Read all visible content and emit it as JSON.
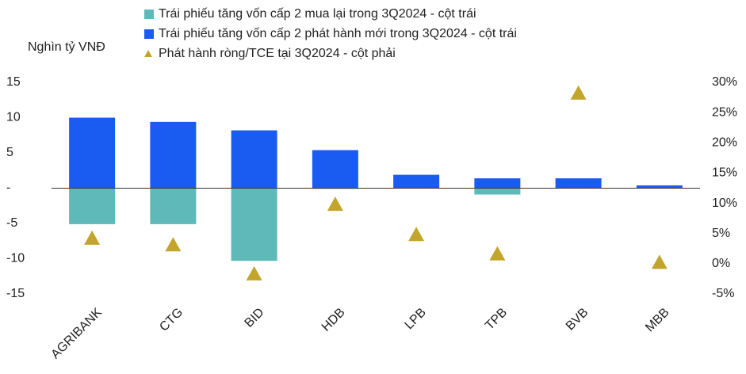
{
  "chart_data": {
    "type": "bar",
    "y_label": "Nghìn tỷ VNĐ",
    "categories": [
      "AGRIBANK",
      "CTG",
      "BID",
      "HDB",
      "LPB",
      "TPB",
      "BVB",
      "MBB"
    ],
    "series": [
      {
        "name": "Trái phiếu tăng vốn cấp 2 mua lại trong 3Q2024 - cột trái",
        "color": "#5fb9b9",
        "values": [
          -5.1,
          -5.1,
          -10.3,
          -0.1,
          0,
          -0.9,
          0,
          0
        ]
      },
      {
        "name": "Trái phiếu tăng vốn cấp 2 phát hành mới trong 3Q2024 - cột trái",
        "color": "#1a5cf2",
        "values": [
          10,
          9.4,
          8.2,
          5.4,
          1.9,
          1.4,
          1.4,
          0.4
        ]
      },
      {
        "name": "Phát hành ròng/TCE tại 3Q2024 - cột phải",
        "color": "#c4a52c",
        "axis": "y2",
        "values": [
          4.2,
          3.1,
          -1.7,
          9.8,
          4.8,
          1.6,
          28.2,
          0.2
        ]
      }
    ],
    "ylim": [
      -15,
      15
    ],
    "yticks": [
      15,
      10,
      5,
      {
        "value": 0,
        "label": "-"
      },
      -5,
      -10,
      -15
    ],
    "y2lim": [
      -5,
      30
    ],
    "y2ticks": [
      {
        "value": 30,
        "label": "30%"
      },
      {
        "value": 25,
        "label": "25%"
      },
      {
        "value": 20,
        "label": "20%"
      },
      {
        "value": 15,
        "label": "15%"
      },
      {
        "value": 10,
        "label": "10%"
      },
      {
        "value": 5,
        "label": "5%"
      },
      {
        "value": 0,
        "label": "0%"
      },
      {
        "value": -5,
        "label": "-5%"
      }
    ]
  }
}
